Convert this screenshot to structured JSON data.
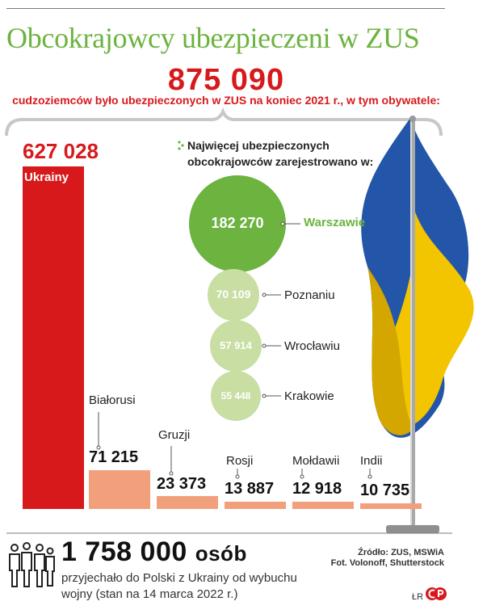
{
  "header": {
    "title": "Obcokrajowcy ubezpieczeni w ZUS",
    "total": "875 090",
    "subtitle": "cudzoziemców było ubezpieczonych w ZUS na koniec 2021 r., w tym obywatele:"
  },
  "chart_data": [
    {
      "type": "bar",
      "categories": [
        "Ukrainy",
        "Białorusi",
        "Gruzji",
        "Rosji",
        "Mołdawii",
        "Indii"
      ],
      "values": [
        627028,
        71215,
        23373,
        13887,
        12918,
        10735
      ],
      "labels": [
        "627 028",
        "71 215",
        "23 373",
        "13 887",
        "12 918",
        "10 735"
      ],
      "colors": {
        "highlight": "#d7191c",
        "others": "#f2a07b"
      },
      "title": "",
      "xlabel": "",
      "ylabel": ""
    },
    {
      "type": "bubble",
      "title": "Najwięcej ubezpieczonych obcokrajowców zarejestrowano w:",
      "categories": [
        "Warszawie",
        "Poznaniu",
        "Wrocławiu",
        "Krakowie"
      ],
      "values": [
        182270,
        70109,
        57914,
        55448
      ],
      "labels": [
        "182 270",
        "70 109",
        "57 914",
        "55 448"
      ],
      "colors": {
        "highlight": "#6cb33f",
        "others": "#c8dea2"
      }
    }
  ],
  "city_title": {
    "line1": "Najwięcej ubezpieczonych",
    "line2": "obcokrajowców zarejestrowano w:"
  },
  "footer": {
    "number": "1 758 000",
    "unit": "osób",
    "line1": "przyjechało do Polski z Ukrainy od wybuchu",
    "line2": "wojny (stan na 14 marca 2022 r.)"
  },
  "source": {
    "line1": "Źródło: ZUS, MSWiA",
    "line2": "Fot. Volonoff, Shutterstock"
  },
  "credit": "ŁR",
  "icons": {
    "people": "people-group-icon",
    "flag": "ukraine-flag",
    "logo": "publisher-logo"
  },
  "colors": {
    "accent_green": "#6cb33f",
    "accent_red": "#d7191c",
    "flag_blue": "#2356a8",
    "flag_yellow": "#f2c500"
  }
}
